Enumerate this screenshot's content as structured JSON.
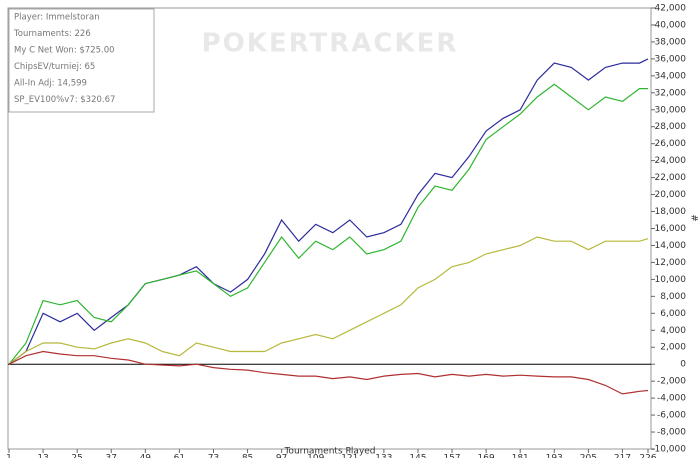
{
  "chart_data": {
    "type": "line",
    "watermark": "POKERTRACKER",
    "info": [
      "Player: Immelstoran",
      "Tournaments: 226",
      "My C Net Won: $725.00",
      "ChipsEV/turniej: 65",
      "All-In Adj: 14,599",
      "SP_EV100%v7: $320.67"
    ],
    "x_label": "Tournaments Played",
    "y_label": "#",
    "x": [
      1,
      7,
      13,
      19,
      25,
      31,
      37,
      43,
      49,
      55,
      61,
      67,
      73,
      79,
      85,
      91,
      97,
      103,
      109,
      115,
      121,
      127,
      133,
      139,
      145,
      151,
      157,
      163,
      169,
      175,
      181,
      187,
      193,
      199,
      205,
      211,
      217,
      223,
      226
    ],
    "series": [
      {
        "color": "#2b2b9c",
        "values": [
          0,
          1500,
          6000,
          5000,
          6000,
          4000,
          5500,
          7000,
          9500,
          10000,
          10500,
          11500,
          9500,
          8500,
          10000,
          13000,
          17000,
          14500,
          16500,
          15500,
          17000,
          15000,
          15500,
          16500,
          20000,
          22500,
          22000,
          24500,
          27500,
          29000,
          30000,
          33500,
          35500,
          35000,
          33500,
          35000,
          35500,
          35500,
          36000
        ]
      },
      {
        "color": "#2fb52f",
        "values": [
          0,
          2500,
          7500,
          7000,
          7500,
          5500,
          5000,
          7000,
          9500,
          10000,
          10500,
          11000,
          9500,
          8000,
          9000,
          12000,
          15000,
          12500,
          14500,
          13500,
          15000,
          13000,
          13500,
          14500,
          18500,
          21000,
          20500,
          23000,
          26500,
          28000,
          29500,
          31500,
          33000,
          31500,
          30000,
          31500,
          31000,
          32500,
          32500
        ]
      },
      {
        "color": "#b8b83c",
        "values": [
          0,
          1500,
          2500,
          2500,
          2000,
          1800,
          2500,
          3000,
          2500,
          1500,
          1000,
          2500,
          2000,
          1500,
          1500,
          1500,
          2500,
          3000,
          3500,
          3000,
          4000,
          5000,
          6000,
          7000,
          9000,
          10000,
          11500,
          12000,
          13000,
          13500,
          14000,
          15000,
          14500,
          14500,
          13500,
          14500,
          14500,
          14500,
          14800
        ]
      },
      {
        "color": "#b03030",
        "values": [
          0,
          1000,
          1500,
          1200,
          1000,
          1000,
          700,
          500,
          0,
          -100,
          -200,
          0,
          -400,
          -600,
          -700,
          -1000,
          -1200,
          -1400,
          -1400,
          -1700,
          -1500,
          -1800,
          -1400,
          -1200,
          -1100,
          -1500,
          -1200,
          -1400,
          -1200,
          -1400,
          -1300,
          -1400,
          -1500,
          -1500,
          -1800,
          -2500,
          -3500,
          -3200,
          -3100
        ]
      }
    ],
    "xlim": [
      1,
      226
    ],
    "xticks": [
      1,
      13,
      25,
      37,
      49,
      61,
      73,
      85,
      97,
      109,
      121,
      133,
      145,
      157,
      169,
      181,
      193,
      205,
      217,
      226
    ],
    "ylim": [
      -10000,
      42000
    ],
    "yticks": [
      {
        "value": -10000,
        "label": "-10,000"
      },
      {
        "value": -8000,
        "label": "-8,000"
      },
      {
        "value": -6000,
        "label": "-6,000"
      },
      {
        "value": -4000,
        "label": "-4,000"
      },
      {
        "value": -2000,
        "label": "-2,000"
      },
      0,
      {
        "value": 2000,
        "label": "2,000"
      },
      {
        "value": 4000,
        "label": "4,000"
      },
      {
        "value": 6000,
        "label": "6,000"
      },
      {
        "value": 8000,
        "label": "8,000"
      },
      {
        "value": 10000,
        "label": "10,000"
      },
      {
        "value": 12000,
        "label": "12,000"
      },
      {
        "value": 14000,
        "label": "14,000"
      },
      {
        "value": 16000,
        "label": "16,000"
      },
      {
        "value": 18000,
        "label": "18,000"
      },
      {
        "value": 20000,
        "label": "20,000"
      },
      {
        "value": 22000,
        "label": "22,000"
      },
      {
        "value": 24000,
        "label": "24,000"
      },
      {
        "value": 26000,
        "label": "26,000"
      },
      {
        "value": 28000,
        "label": "28,000"
      },
      {
        "value": 30000,
        "label": "30,000"
      },
      {
        "value": 32000,
        "label": "32,000"
      },
      {
        "value": 34000,
        "label": "34,000"
      },
      {
        "value": 36000,
        "label": "36,000"
      },
      {
        "value": 38000,
        "label": "38,000"
      },
      {
        "value": 40000,
        "label": "40,000"
      },
      {
        "value": 42000,
        "label": "42,000"
      }
    ]
  }
}
